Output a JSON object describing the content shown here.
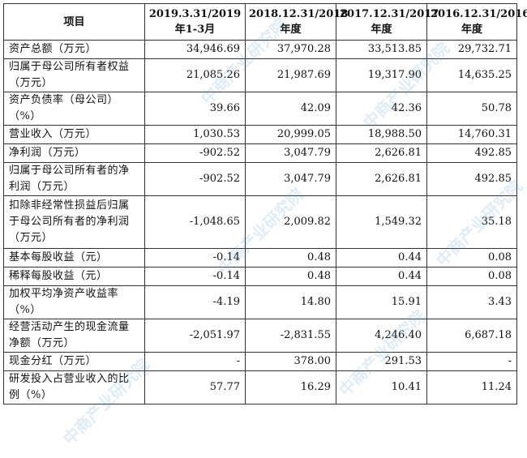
{
  "table": {
    "headers": [
      "项目",
      "2019.3.31/2019年1-3月",
      "2018.12.31/2018年度",
      "2017.12.31/2017年度",
      "2016.12.31/2016年度"
    ],
    "rows": [
      {
        "label": "资产总额（万元）",
        "values": [
          "34,946.69",
          "37,970.28",
          "33,513.85",
          "29,732.71"
        ]
      },
      {
        "label": "归属于母公司所有者权益（万元）",
        "values": [
          "21,085.26",
          "21,987.69",
          "19,317.90",
          "14,635.25"
        ]
      },
      {
        "label": "资产负债率（母公司）（%）",
        "values": [
          "39.66",
          "42.09",
          "42.36",
          "50.78"
        ]
      },
      {
        "label": "营业收入（万元）",
        "values": [
          "1,030.53",
          "20,999.05",
          "18,988.50",
          "14,760.31"
        ]
      },
      {
        "label": "净利润（万元）",
        "values": [
          "-902.52",
          "3,047.79",
          "2,626.81",
          "492.85"
        ]
      },
      {
        "label": "归属于母公司所有者的净利润（万元）",
        "values": [
          "-902.52",
          "3,047.79",
          "2,626.81",
          "492.85"
        ]
      },
      {
        "label": "扣除非经常性损益后归属于母公司所有者的净利润（万元）",
        "values": [
          "-1,048.65",
          "2,009.82",
          "1,549.32",
          "35.18"
        ]
      },
      {
        "label": "基本每股收益（元）",
        "values": [
          "-0.14",
          "0.48",
          "0.44",
          "0.08"
        ]
      },
      {
        "label": "稀释每股收益（元）",
        "values": [
          "-0.14",
          "0.48",
          "0.44",
          "0.08"
        ]
      },
      {
        "label": "加权平均净资产收益率（%）",
        "values": [
          "-4.19",
          "14.80",
          "15.91",
          "3.43"
        ]
      },
      {
        "label": "经营活动产生的现金流量净额（万元）",
        "values": [
          "-2,051.97",
          "-2,831.55",
          "4,246.40",
          "6,687.18"
        ]
      },
      {
        "label": "现金分红（万元）",
        "values": [
          "-",
          "378.00",
          "291.53",
          "-"
        ]
      },
      {
        "label": "研发投入占营业收入的比例（%）",
        "values": [
          "57.77",
          "16.29",
          "10.41",
          "11.24"
        ]
      }
    ]
  },
  "watermark": {
    "text": "中商产业研究院",
    "color": "#5096d2"
  }
}
